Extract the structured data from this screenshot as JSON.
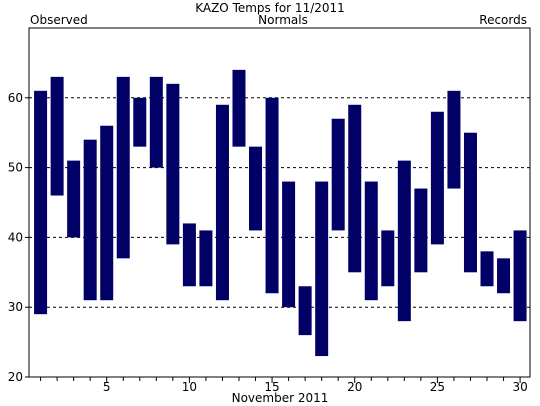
{
  "chart_data": {
    "type": "bar",
    "subtype": "floating-range",
    "title": "KAZO Temps for  11/2011",
    "legend": [
      {
        "label": "Observed",
        "color": "#000066",
        "position": "top-left"
      },
      {
        "label": "Normals",
        "color": "#006600",
        "position": "top-center"
      },
      {
        "label": "Records",
        "color": "#b39ddb",
        "position": "top-right"
      }
    ],
    "xlabel": "November 2011",
    "ylabel": "",
    "xlim": [
      0.3,
      30.6
    ],
    "ylim": [
      20,
      70
    ],
    "x_ticks": [
      5,
      10,
      15,
      20,
      25,
      30
    ],
    "y_ticks": [
      20,
      30,
      40,
      50,
      60
    ],
    "grid": {
      "y": "dashed",
      "y_at": [
        30,
        40,
        50,
        60
      ]
    },
    "bar_color": "#000066",
    "days": [
      1,
      2,
      3,
      4,
      5,
      6,
      7,
      8,
      9,
      10,
      11,
      12,
      13,
      14,
      15,
      16,
      17,
      18,
      19,
      20,
      21,
      22,
      23,
      24,
      25,
      26,
      27,
      28,
      29,
      30
    ],
    "high": [
      61,
      63,
      51,
      54,
      56,
      63,
      60,
      63,
      62,
      42,
      41,
      59,
      64,
      53,
      60,
      48,
      33,
      48,
      57,
      59,
      48,
      41,
      51,
      47,
      58,
      61,
      55,
      38,
      37,
      41
    ],
    "low": [
      29,
      46,
      40,
      31,
      31,
      37,
      53,
      50,
      39,
      33,
      33,
      31,
      53,
      41,
      32,
      30,
      26,
      23,
      41,
      35,
      31,
      33,
      28,
      35,
      39,
      47,
      35,
      33,
      32,
      28
    ]
  }
}
